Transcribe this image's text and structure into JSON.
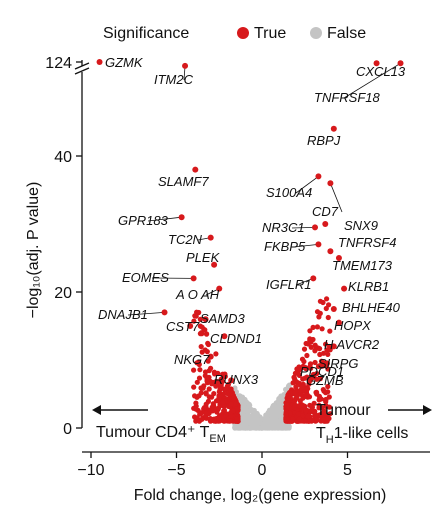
{
  "legend": {
    "title": "Significance",
    "entries": [
      {
        "label": "True",
        "color": "#d7191c"
      },
      {
        "label": "False",
        "color": "#c4c4c4"
      }
    ]
  },
  "annotations": {
    "left": "Tumour CD4⁺ T",
    "left_sub": "EM",
    "right_line1": "Tumour",
    "right_line2_pre": "T",
    "right_line2_sub": "H",
    "right_line2_post": "1-like cells"
  },
  "chart_data": {
    "type": "scatter",
    "xlabel": "Fold change, log₂(gene expression)",
    "ylabel": "−log₁₀(adj. P value)",
    "xlim": [
      -10.5,
      9.5
    ],
    "ylim": [
      0,
      124
    ],
    "x_ticks": [
      -10,
      -5,
      0,
      5
    ],
    "y_ticks": [
      0,
      20,
      40,
      124
    ],
    "y_axis_break": {
      "from": 47,
      "to": 118
    },
    "colors": {
      "significant": "#d7191c",
      "not_significant": "#c4c4c4"
    },
    "labeled_points": [
      {
        "gene": "GZMK",
        "x": -9.5,
        "y": 124
      },
      {
        "gene": "ITM2C",
        "x": -4.5,
        "y": 121
      },
      {
        "gene": "CXCL13",
        "x": 6.7,
        "y": 123
      },
      {
        "gene": "TNFRSF18",
        "x": 8.1,
        "y": 123
      },
      {
        "gene": "RBPJ",
        "x": 4.2,
        "y": 44
      },
      {
        "gene": "SLAMF7",
        "x": -3.9,
        "y": 38
      },
      {
        "gene": "S100A4",
        "x": 3.3,
        "y": 37
      },
      {
        "gene": "CD7",
        "x": 4.0,
        "y": 36
      },
      {
        "gene": "GPR183",
        "x": -4.7,
        "y": 31
      },
      {
        "gene": "NR3C1",
        "x": 3.1,
        "y": 29.5
      },
      {
        "gene": "SNX9",
        "x": 3.7,
        "y": 30
      },
      {
        "gene": "TC2N",
        "x": -3.0,
        "y": 28
      },
      {
        "gene": "FKBP5",
        "x": 3.3,
        "y": 27
      },
      {
        "gene": "TNFRSF4",
        "x": 4.0,
        "y": 26
      },
      {
        "gene": "PLEK",
        "x": -2.8,
        "y": 24
      },
      {
        "gene": "TMEM173",
        "x": 4.5,
        "y": 25
      },
      {
        "gene": "EOMES",
        "x": -4.0,
        "y": 22
      },
      {
        "gene": "IGFLR1",
        "x": 3.0,
        "y": 22
      },
      {
        "gene": "KLRB1",
        "x": 4.8,
        "y": 20.5
      },
      {
        "gene": "AOAH",
        "x": -2.5,
        "y": 20.5
      },
      {
        "gene": "DNAJB1",
        "x": -5.7,
        "y": 17
      },
      {
        "gene": "BHLHE40",
        "x": 4.2,
        "y": 17.5
      },
      {
        "gene": "SAMD3",
        "x": -3.3,
        "y": 16
      },
      {
        "gene": "HOPX",
        "x": 4.5,
        "y": 15.5
      },
      {
        "gene": "CST7",
        "x": -4.2,
        "y": 15
      },
      {
        "gene": "CLDND1",
        "x": -2.2,
        "y": 13.5
      },
      {
        "gene": "HAVCR2",
        "x": 4.2,
        "y": 12
      },
      {
        "gene": "NKG7",
        "x": -3.0,
        "y": 10.5
      },
      {
        "gene": "SIRPG",
        "x": 3.8,
        "y": 9.5
      },
      {
        "gene": "PDCD1",
        "x": 2.8,
        "y": 7
      },
      {
        "gene": "GZMB",
        "x": 3.0,
        "y": 7.5
      },
      {
        "gene": "RUNX3",
        "x": -1.8,
        "y": 7
      }
    ],
    "label_texts": {
      "GZMK": "GZMK",
      "ITM2C": "ITM2C",
      "CXCL13": "CXCL13",
      "TNFRSF18": "TNFRSF18",
      "RBPJ": "RBPJ",
      "SLAMF7": "SLAMF7",
      "S100A4": "S100A4",
      "CD7": "CD7",
      "GPR183": "GPR183",
      "NR3C1": "NR3C1",
      "SNX9": "SNX9",
      "TC2N": "TC2N",
      "FKBP5": "FKBP5",
      "TNFRSF4": "TNFRSF4",
      "PLEK": "PLEK",
      "TMEM173": "TMEM173",
      "EOMES": "EOMES",
      "IGFLR1": "IGFLR1",
      "KLRB1": "KLRB1",
      "AOAH": "A O AH",
      "DNAJB1": "DNAJB1",
      "BHLHE40": "BHLHE40",
      "SAMD3": "SAMD3",
      "HOPX": "HOPX",
      "CST7": "CST7",
      "CLDND1": "CLDND1",
      "HAVCR2": "H AVCR2",
      "NKG7": "NKG7",
      "SIRPG": "SIRPG",
      "PDCD1": "PDCD1",
      "GZMB": "GZMB",
      "RUNX3": "RUNX3"
    }
  }
}
